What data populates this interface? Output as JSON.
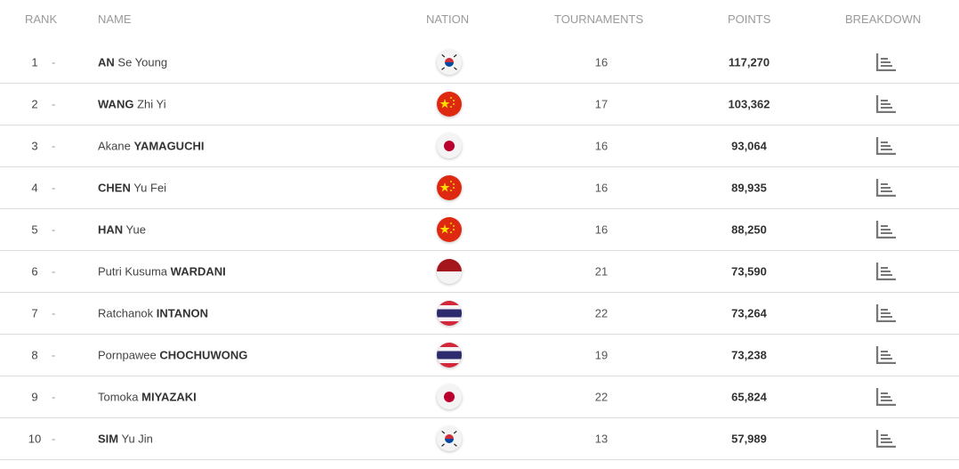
{
  "headers": {
    "rank": "RANK",
    "name": "NAME",
    "nation": "NATION",
    "tournaments": "TOURNAMENTS",
    "points": "POINTS",
    "breakdown": "BREAKDOWN"
  },
  "rows": [
    {
      "rank": "1",
      "movement": "-",
      "name": [
        {
          "text": "AN",
          "bold": true
        },
        {
          "text": " Se Young",
          "bold": false
        }
      ],
      "nation": "KOR",
      "tournaments": "16",
      "points": "117,270"
    },
    {
      "rank": "2",
      "movement": "-",
      "name": [
        {
          "text": "WANG",
          "bold": true
        },
        {
          "text": " Zhi Yi",
          "bold": false
        }
      ],
      "nation": "CHN",
      "tournaments": "17",
      "points": "103,362"
    },
    {
      "rank": "3",
      "movement": "-",
      "name": [
        {
          "text": "Akane ",
          "bold": false
        },
        {
          "text": "YAMAGUCHI",
          "bold": true
        }
      ],
      "nation": "JPN",
      "tournaments": "16",
      "points": "93,064"
    },
    {
      "rank": "4",
      "movement": "-",
      "name": [
        {
          "text": "CHEN",
          "bold": true
        },
        {
          "text": " Yu Fei",
          "bold": false
        }
      ],
      "nation": "CHN",
      "tournaments": "16",
      "points": "89,935"
    },
    {
      "rank": "5",
      "movement": "-",
      "name": [
        {
          "text": "HAN",
          "bold": true
        },
        {
          "text": " Yue",
          "bold": false
        }
      ],
      "nation": "CHN",
      "tournaments": "16",
      "points": "88,250"
    },
    {
      "rank": "6",
      "movement": "-",
      "name": [
        {
          "text": "Putri Kusuma ",
          "bold": false
        },
        {
          "text": "WARDANI",
          "bold": true
        }
      ],
      "nation": "INA",
      "tournaments": "21",
      "points": "73,590"
    },
    {
      "rank": "7",
      "movement": "-",
      "name": [
        {
          "text": "Ratchanok ",
          "bold": false
        },
        {
          "text": "INTANON",
          "bold": true
        }
      ],
      "nation": "THA",
      "tournaments": "22",
      "points": "73,264"
    },
    {
      "rank": "8",
      "movement": "-",
      "name": [
        {
          "text": "Pornpawee ",
          "bold": false
        },
        {
          "text": "CHOCHUWONG",
          "bold": true
        }
      ],
      "nation": "THA",
      "tournaments": "19",
      "points": "73,238"
    },
    {
      "rank": "9",
      "movement": "-",
      "name": [
        {
          "text": "Tomoka ",
          "bold": false
        },
        {
          "text": "MIYAZAKI",
          "bold": true
        }
      ],
      "nation": "JPN",
      "tournaments": "22",
      "points": "65,824"
    },
    {
      "rank": "10",
      "movement": "-",
      "name": [
        {
          "text": "SIM",
          "bold": true
        },
        {
          "text": " Yu Jin",
          "bold": false
        }
      ],
      "nation": "KOR",
      "tournaments": "13",
      "points": "57,989"
    }
  ],
  "icons": {
    "breakdown": "bar-chart-list-icon"
  }
}
